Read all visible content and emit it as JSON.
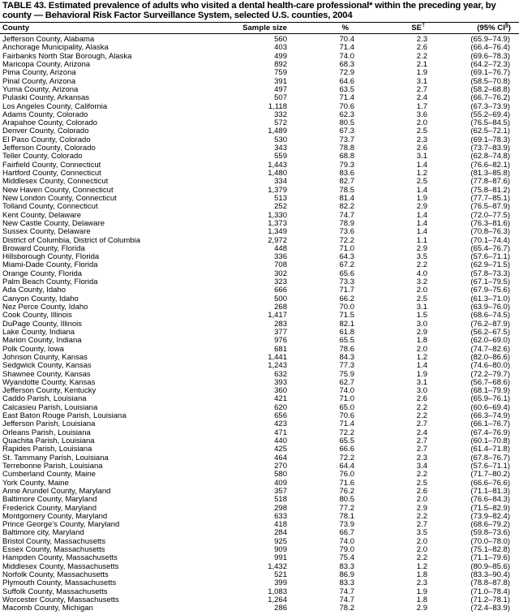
{
  "title": "TABLE 43. Estimated prevalence of adults who visited a dental health-care professional* within the preceding year, by county — Behavioral Risk Factor Surveillance System, selected U.S. counties, 2004",
  "columns": {
    "county": "County",
    "sample_size": "Sample size",
    "percent": "%",
    "se": "SE",
    "se_mark": "†",
    "ci": "(95% CI",
    "ci_mark": "§",
    "ci_close": ")"
  },
  "rows": [
    [
      "Jefferson County, Alabama",
      "560",
      "70.4",
      "2.3",
      "(65.9–74.9)"
    ],
    [
      "Anchorage Municipality, Alaska",
      "403",
      "71.4",
      "2.6",
      "(66.4–76.4)"
    ],
    [
      "Fairbanks North Star Borough, Alaska",
      "499",
      "74.0",
      "2.2",
      "(69.6–78.3)"
    ],
    [
      "Maricopa County, Arizona",
      "892",
      "68.3",
      "2.1",
      "(64.2–72.3)"
    ],
    [
      "Pima County, Arizona",
      "759",
      "72.9",
      "1.9",
      "(69.1–76.7)"
    ],
    [
      "Pinal County, Arizona",
      "391",
      "64.6",
      "3.1",
      "(58.5–70.8)"
    ],
    [
      "Yuma County, Arizona",
      "497",
      "63.5",
      "2.7",
      "(58.2–68.8)"
    ],
    [
      "Pulaski County, Arkansas",
      "507",
      "71.4",
      "2.4",
      "(66.7–76.2)"
    ],
    [
      "Los Angeles County, California",
      "1,118",
      "70.6",
      "1.7",
      "(67.3–73.9)"
    ],
    [
      "Adams County, Colorado",
      "332",
      "62.3",
      "3.6",
      "(55.2–69.4)"
    ],
    [
      "Arapahoe County, Colorado",
      "572",
      "80.5",
      "2.0",
      "(76.5–84.5)"
    ],
    [
      "Denver County, Colorado",
      "1,489",
      "67.3",
      "2.5",
      "(62.5–72.1)"
    ],
    [
      "El Paso County, Colorado",
      "530",
      "73.7",
      "2.3",
      "(69.1–78.3)"
    ],
    [
      "Jefferson County, Colorado",
      "343",
      "78.8",
      "2.6",
      "(73.7–83.9)"
    ],
    [
      "Teller County, Colorado",
      "559",
      "68.8",
      "3.1",
      "(62.8–74.8)"
    ],
    [
      "Fairfield County, Connecticut",
      "1,443",
      "79.3",
      "1.4",
      "(76.6–82.1)"
    ],
    [
      "Hartford County, Connecticut",
      "1,480",
      "83.6",
      "1.2",
      "(81.3–85.8)"
    ],
    [
      "Middlesex County, Connecticut",
      "334",
      "82.7",
      "2.5",
      "(77.8–87.6)"
    ],
    [
      "New Haven County, Connecticut",
      "1,379",
      "78.5",
      "1.4",
      "(75.8–81.2)"
    ],
    [
      "New London County, Connecticut",
      "513",
      "81.4",
      "1.9",
      "(77.7–85.1)"
    ],
    [
      "Tolland County, Connecticut",
      "252",
      "82.2",
      "2.9",
      "(76.5–87.9)"
    ],
    [
      "Kent County, Delaware",
      "1,330",
      "74.7",
      "1.4",
      "(72.0–77.5)"
    ],
    [
      "New Castle County, Delaware",
      "1,373",
      "78.9",
      "1.4",
      "(76.3–81.6)"
    ],
    [
      "Sussex County, Delaware",
      "1,349",
      "73.6",
      "1.4",
      "(70.8–76.3)"
    ],
    [
      "District of Columbia, District of Columbia",
      "2,972",
      "72.2",
      "1.1",
      "(70.1–74.4)"
    ],
    [
      "Broward County, Florida",
      "448",
      "71.0",
      "2.9",
      "(65.4–76.7)"
    ],
    [
      "Hillsborough County, Florida",
      "336",
      "64.3",
      "3.5",
      "(57.6–71.1)"
    ],
    [
      "Miami-Dade County, Florida",
      "708",
      "67.2",
      "2.2",
      "(62.9–71.5)"
    ],
    [
      "Orange County, Florida",
      "302",
      "65.6",
      "4.0",
      "(57.8–73.3)"
    ],
    [
      "Palm Beach County, Florida",
      "323",
      "73.3",
      "3.2",
      "(67.1–79.5)"
    ],
    [
      "Ada County, Idaho",
      "666",
      "71.7",
      "2.0",
      "(67.9–75.6)"
    ],
    [
      "Canyon County, Idaho",
      "500",
      "66.2",
      "2.5",
      "(61.3–71.0)"
    ],
    [
      "Nez Perce County, Idaho",
      "268",
      "70.0",
      "3.1",
      "(63.9–76.0)"
    ],
    [
      "Cook County, Illinois",
      "1,417",
      "71.5",
      "1.5",
      "(68.6–74.5)"
    ],
    [
      "DuPage County, Illinois",
      "283",
      "82.1",
      "3.0",
      "(76.2–87.9)"
    ],
    [
      "Lake County, Indiana",
      "377",
      "61.8",
      "2.9",
      "(56.2–67.5)"
    ],
    [
      "Marion County, Indiana",
      "976",
      "65.5",
      "1.8",
      "(62.0–69.0)"
    ],
    [
      "Polk County, Iowa",
      "681",
      "78.6",
      "2.0",
      "(74.7–82.6)"
    ],
    [
      "Johnson County, Kansas",
      "1,441",
      "84.3",
      "1.2",
      "(82.0–86.6)"
    ],
    [
      "Sedgwick County, Kansas",
      "1,243",
      "77.3",
      "1.4",
      "(74.6–80.0)"
    ],
    [
      "Shawnee County, Kansas",
      "632",
      "75.9",
      "1.9",
      "(72.2–79.7)"
    ],
    [
      "Wyandotte County, Kansas",
      "393",
      "62.7",
      "3.1",
      "(56.7–68.6)"
    ],
    [
      "Jefferson County, Kentucky",
      "360",
      "74.0",
      "3.0",
      "(68.1–79.9)"
    ],
    [
      "Caddo Parish, Louisiana",
      "421",
      "71.0",
      "2.6",
      "(65.9–76.1)"
    ],
    [
      "Calcasieu Parish, Louisiana",
      "620",
      "65.0",
      "2.2",
      "(60.6–69.4)"
    ],
    [
      "East Baton Rouge Parish, Louisiana",
      "656",
      "70.6",
      "2.2",
      "(66.3–74.9)"
    ],
    [
      "Jefferson Parish, Louisiana",
      "423",
      "71.4",
      "2.7",
      "(66.1–76.7)"
    ],
    [
      "Orleans Parish, Louisiana",
      "471",
      "72.2",
      "2.4",
      "(67.4–76.9)"
    ],
    [
      "Quachita Parish, Louisiana",
      "440",
      "65.5",
      "2.7",
      "(60.1–70.8)"
    ],
    [
      "Rapides Parish, Louisiana",
      "425",
      "66.6",
      "2.7",
      "(61.4–71.8)"
    ],
    [
      "St. Tammany Parish, Louisiana",
      "464",
      "72.2",
      "2.3",
      "(67.8–76.7)"
    ],
    [
      "Terrebonne Parish, Louisiana",
      "270",
      "64.4",
      "3.4",
      "(57.6–71.1)"
    ],
    [
      "Cumberland County, Maine",
      "580",
      "76.0",
      "2.2",
      "(71.7–80.2)"
    ],
    [
      "York County, Maine",
      "409",
      "71.6",
      "2.5",
      "(66.6–76.6)"
    ],
    [
      "Anne Arundel County, Maryland",
      "357",
      "76.2",
      "2.6",
      "(71.1–81.3)"
    ],
    [
      "Baltimore County, Maryland",
      "518",
      "80.5",
      "2.0",
      "(76.6–84.3)"
    ],
    [
      "Frederick County, Maryland",
      "298",
      "77.2",
      "2.9",
      "(71.5–82.9)"
    ],
    [
      "Montgomery County, Maryland",
      "633",
      "78.1",
      "2.2",
      "(73.9–82.4)"
    ],
    [
      "Prince George’s County, Maryland",
      "418",
      "73.9",
      "2.7",
      "(68.6–79.2)"
    ],
    [
      "Baltimore city, Maryland",
      "284",
      "66.7",
      "3.5",
      "(59.8–73.6)"
    ],
    [
      "Bristol County, Massachusetts",
      "925",
      "74.0",
      "2.0",
      "(70.0–78.0)"
    ],
    [
      "Essex County, Massachusetts",
      "909",
      "79.0",
      "2.0",
      "(75.1–82.8)"
    ],
    [
      "Hampden County, Massachusetts",
      "991",
      "75.4",
      "2.2",
      "(71.1–79.6)"
    ],
    [
      "Middlesex County, Massachusetts",
      "1,432",
      "83.3",
      "1.2",
      "(80.9–85.6)"
    ],
    [
      "Norfolk County, Massachusetts",
      "521",
      "86.9",
      "1.8",
      "(83.3–90.4)"
    ],
    [
      "Plymouth County, Massachusetts",
      "399",
      "83.3",
      "2.3",
      "(78.8–87.8)"
    ],
    [
      "Suffolk County, Massachusetts",
      "1,083",
      "74.7",
      "1.9",
      "(71.0–78.4)"
    ],
    [
      "Worcester County, Massachusetts",
      "1,264",
      "74.7",
      "1.8",
      "(71.2–78.1)"
    ],
    [
      "Macomb County, Michigan",
      "286",
      "78.2",
      "2.9",
      "(72.4–83.9)"
    ]
  ]
}
